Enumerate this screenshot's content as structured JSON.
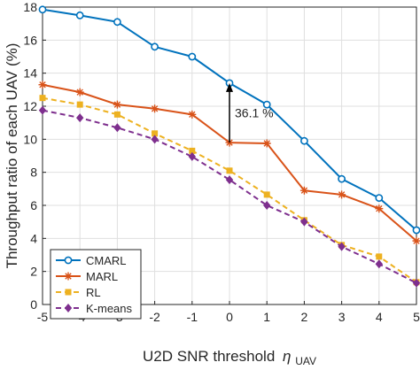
{
  "chart_data": {
    "type": "line",
    "xlabel": "U2D SNR threshold",
    "xlabel_symbol": "η",
    "xlabel_subscript": "UAV",
    "ylabel": "Throughput ratio of each UAV (%)",
    "x": [
      -5,
      -4,
      -3,
      -2,
      -1,
      0,
      1,
      2,
      3,
      4,
      5
    ],
    "xlim": [
      -5,
      5
    ],
    "ylim": [
      0,
      18
    ],
    "xticks": [
      "-5",
      "-4",
      "-3",
      "-2",
      "-1",
      "0",
      "1",
      "2",
      "3",
      "4",
      "5"
    ],
    "yticks": [
      "0",
      "2",
      "4",
      "6",
      "8",
      "10",
      "12",
      "14",
      "16",
      "18"
    ],
    "grid": true,
    "legend_position": "bottom-left",
    "series": [
      {
        "name": "CMARL",
        "color": "#0072BD",
        "marker": "circle",
        "dash": "solid",
        "values": [
          17.85,
          17.5,
          17.1,
          15.6,
          15.0,
          13.4,
          12.1,
          9.9,
          7.6,
          6.45,
          4.5
        ]
      },
      {
        "name": "MARL",
        "color": "#D95319",
        "marker": "star",
        "dash": "solid",
        "values": [
          13.3,
          12.85,
          12.1,
          11.85,
          11.5,
          9.8,
          9.75,
          6.9,
          6.65,
          5.8,
          3.85
        ]
      },
      {
        "name": "RL",
        "color": "#EDB120",
        "marker": "square",
        "dash": "dashed",
        "values": [
          12.5,
          12.1,
          11.5,
          10.35,
          9.3,
          8.1,
          6.65,
          5.1,
          3.6,
          2.9,
          1.35
        ]
      },
      {
        "name": "K-means",
        "color": "#7E2F8E",
        "marker": "diamond",
        "dash": "dashed",
        "values": [
          11.75,
          11.3,
          10.7,
          10.0,
          8.95,
          7.55,
          6.0,
          5.0,
          3.5,
          2.45,
          1.3
        ]
      }
    ],
    "annotation": {
      "text": "36.1 %",
      "x": 0,
      "y_from": 9.8,
      "y_to": 13.4
    }
  }
}
